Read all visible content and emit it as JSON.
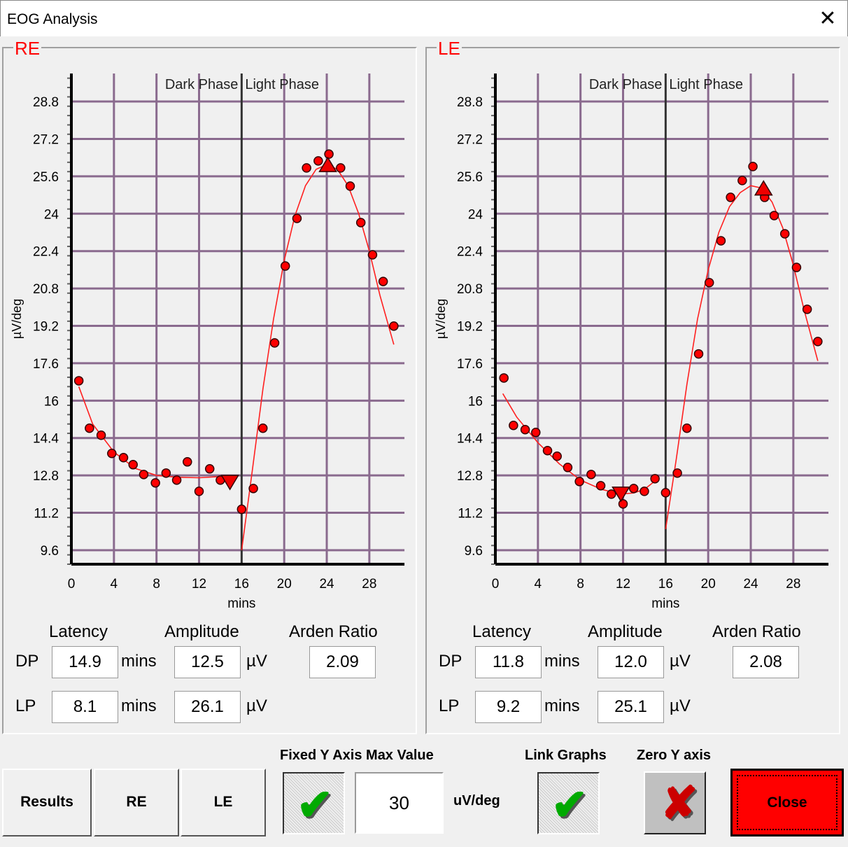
{
  "window": {
    "title": "EOG Analysis",
    "close_icon": "close-icon"
  },
  "panels": [
    {
      "id": "re",
      "title": "RE",
      "headers": {
        "latency": "Latency",
        "amplitude": "Amplitude",
        "arden": "Arden Ratio"
      },
      "dp": {
        "label": "DP",
        "latency": "14.9",
        "latency_unit": "mins",
        "amplitude": "12.5",
        "amplitude_unit": "µV",
        "arden_ratio": "2.09"
      },
      "lp": {
        "label": "LP",
        "latency": "8.1",
        "latency_unit": "mins",
        "amplitude": "26.1",
        "amplitude_unit": "µV"
      }
    },
    {
      "id": "le",
      "title": "LE",
      "headers": {
        "latency": "Latency",
        "amplitude": "Amplitude",
        "arden": "Arden Ratio"
      },
      "dp": {
        "label": "DP",
        "latency": "11.8",
        "latency_unit": "mins",
        "amplitude": "12.0",
        "amplitude_unit": "µV",
        "arden_ratio": "2.08"
      },
      "lp": {
        "label": "LP",
        "latency": "9.2",
        "latency_unit": "mins",
        "amplitude": "25.1",
        "amplitude_unit": "µV"
      }
    }
  ],
  "controls": {
    "results": "Results",
    "re": "RE",
    "le": "LE",
    "fixed_y_label": "Fixed Y Axis Max Value",
    "fixed_y_checked": true,
    "fixed_y_value": "30",
    "fixed_y_unit": "uV/deg",
    "link_graphs_label": "Link Graphs",
    "link_graphs_checked": true,
    "zero_y_label": "Zero Y axis",
    "zero_y_checked": false,
    "close": "Close"
  },
  "colors": {
    "accent": "#ff0000",
    "grid": "#8a6a8e",
    "fit": "#ff2020",
    "close_button": "#ff0000"
  },
  "chart_data": [
    {
      "type": "scatter",
      "panel": "RE",
      "xlabel": "mins",
      "ylabel": "µV/deg",
      "annotations": [
        "Dark Phase",
        "Light Phase"
      ],
      "phase_boundary": 16,
      "xlim": [
        0,
        31.3
      ],
      "ylim": [
        9.0,
        30.0
      ],
      "xticks": [
        0,
        4,
        8,
        12,
        16,
        20,
        24,
        28
      ],
      "yticks": [
        9.6,
        11.2,
        12.8,
        14.4,
        16,
        17.6,
        19.2,
        20.8,
        22.4,
        24,
        25.6,
        27.2,
        28.8
      ],
      "grid": true,
      "points": [
        [
          0.7,
          16.85
        ],
        [
          1.7,
          14.82
        ],
        [
          2.8,
          14.52
        ],
        [
          3.8,
          13.74
        ],
        [
          4.9,
          13.56
        ],
        [
          5.8,
          13.26
        ],
        [
          6.8,
          12.84
        ],
        [
          7.9,
          12.48
        ],
        [
          8.9,
          12.9
        ],
        [
          9.9,
          12.6
        ],
        [
          10.9,
          13.38
        ],
        [
          12.0,
          12.12
        ],
        [
          13.0,
          13.08
        ],
        [
          14.0,
          12.6
        ],
        [
          16.0,
          11.35
        ],
        [
          17.1,
          12.24
        ],
        [
          18.0,
          14.82
        ],
        [
          19.1,
          18.47
        ],
        [
          20.1,
          21.76
        ],
        [
          21.2,
          23.8
        ],
        [
          22.1,
          25.96
        ],
        [
          23.2,
          26.26
        ],
        [
          24.2,
          26.55
        ],
        [
          25.3,
          25.96
        ],
        [
          26.2,
          25.18
        ],
        [
          27.2,
          23.62
        ],
        [
          28.3,
          22.24
        ],
        [
          29.3,
          21.1
        ],
        [
          30.3,
          19.19
        ]
      ],
      "dp_marker": [
        14.9,
        12.5
      ],
      "lp_marker": [
        24.1,
        26.1
      ],
      "fit_dark": [
        [
          0.7,
          16.6
        ],
        [
          2,
          15.0
        ],
        [
          4,
          13.8
        ],
        [
          6,
          13.1
        ],
        [
          8,
          12.8
        ],
        [
          10,
          12.72
        ],
        [
          12,
          12.7
        ],
        [
          14,
          12.75
        ],
        [
          15,
          12.8
        ]
      ],
      "fit_light": [
        [
          16,
          9.6
        ],
        [
          17,
          13
        ],
        [
          18,
          16.5
        ],
        [
          19,
          19.5
        ],
        [
          20,
          22
        ],
        [
          21,
          23.9
        ],
        [
          22,
          25.2
        ],
        [
          23,
          25.9
        ],
        [
          24,
          26.1
        ],
        [
          25,
          25.9
        ],
        [
          26,
          25.2
        ],
        [
          27,
          24
        ],
        [
          28,
          22.4
        ],
        [
          29,
          20.5
        ],
        [
          30.3,
          18.4
        ]
      ]
    },
    {
      "type": "scatter",
      "panel": "LE",
      "xlabel": "mins",
      "ylabel": "µV/deg",
      "annotations": [
        "Dark Phase",
        "Light Phase"
      ],
      "phase_boundary": 16,
      "xlim": [
        0,
        31.3
      ],
      "ylim": [
        9.0,
        30.0
      ],
      "xticks": [
        0,
        4,
        8,
        12,
        16,
        20,
        24,
        28
      ],
      "yticks": [
        9.6,
        11.2,
        12.8,
        14.4,
        16,
        17.6,
        19.2,
        20.8,
        22.4,
        24,
        25.6,
        27.2,
        28.8
      ],
      "grid": true,
      "points": [
        [
          0.8,
          16.97
        ],
        [
          1.7,
          14.94
        ],
        [
          2.8,
          14.76
        ],
        [
          3.8,
          14.64
        ],
        [
          4.9,
          13.86
        ],
        [
          5.8,
          13.62
        ],
        [
          6.8,
          13.14
        ],
        [
          7.9,
          12.54
        ],
        [
          9.0,
          12.84
        ],
        [
          9.9,
          12.36
        ],
        [
          10.9,
          12.0
        ],
        [
          12.0,
          11.58
        ],
        [
          13.0,
          12.24
        ],
        [
          14.0,
          12.12
        ],
        [
          15.0,
          12.66
        ],
        [
          16.0,
          12.06
        ],
        [
          17.1,
          12.9
        ],
        [
          18.0,
          14.82
        ],
        [
          19.1,
          18.0
        ],
        [
          20.1,
          21.05
        ],
        [
          21.2,
          22.84
        ],
        [
          22.1,
          24.7
        ],
        [
          23.2,
          25.42
        ],
        [
          24.2,
          26.02
        ],
        [
          25.3,
          24.7
        ],
        [
          26.2,
          23.92
        ],
        [
          27.2,
          23.14
        ],
        [
          28.3,
          21.7
        ],
        [
          29.3,
          19.91
        ],
        [
          30.3,
          18.53
        ]
      ],
      "dp_marker": [
        11.8,
        12.0
      ],
      "lp_marker": [
        25.2,
        25.1
      ],
      "fit_dark": [
        [
          0.7,
          16.3
        ],
        [
          2,
          15.3
        ],
        [
          4,
          14.2
        ],
        [
          6,
          13.3
        ],
        [
          8,
          12.6
        ],
        [
          10,
          12.2
        ],
        [
          11.8,
          12.0
        ],
        [
          13,
          12.05
        ],
        [
          14,
          12.2
        ],
        [
          15.1,
          12.6
        ]
      ],
      "fit_light": [
        [
          16,
          10.5
        ],
        [
          17,
          13.5
        ],
        [
          18,
          16.7
        ],
        [
          19,
          19.5
        ],
        [
          20,
          21.6
        ],
        [
          21,
          23.2
        ],
        [
          22,
          24.3
        ],
        [
          23,
          24.9
        ],
        [
          24,
          25.2
        ],
        [
          25,
          25.1
        ],
        [
          26,
          24.5
        ],
        [
          27,
          23.4
        ],
        [
          28,
          21.8
        ],
        [
          29,
          19.9
        ],
        [
          30.3,
          17.7
        ]
      ]
    }
  ]
}
